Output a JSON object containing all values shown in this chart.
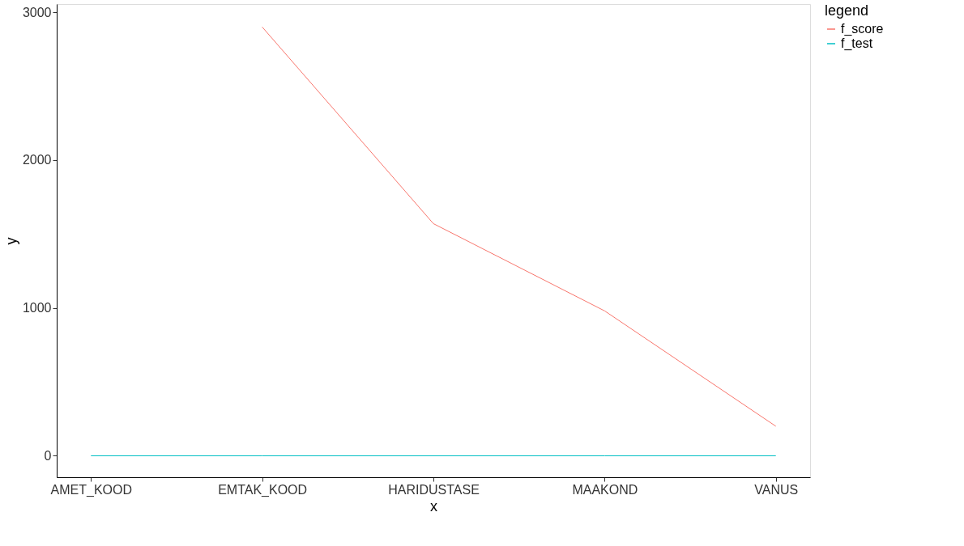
{
  "chart_data": {
    "type": "line",
    "xlabel": "x",
    "ylabel": "y",
    "legend_title": "legend",
    "categories": [
      "AMET_KOOD",
      "EMTAK_KOOD",
      "HARIDUSTASE",
      "MAAKOND",
      "VANUS"
    ],
    "series": [
      {
        "name": "f_score",
        "color": "#f8766d",
        "values": [
          null,
          2900,
          1570,
          980,
          200
        ]
      },
      {
        "name": "f_test",
        "color": "#00bfc4",
        "values": [
          0,
          0,
          0,
          0,
          0
        ]
      }
    ],
    "ylim": [
      -145,
      3055
    ],
    "yticks": [
      0,
      1000,
      2000,
      3000
    ],
    "grid": false,
    "legend": "right",
    "marker": "none",
    "line_style": "solid"
  }
}
